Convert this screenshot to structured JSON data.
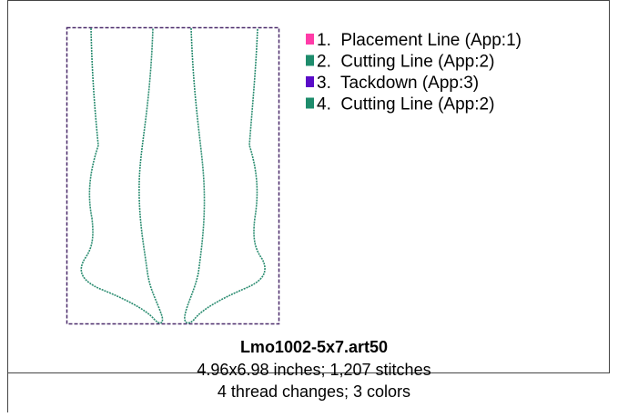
{
  "legend": [
    {
      "label": "1.  Placement Line (App:1)",
      "color": "#ff3ca8"
    },
    {
      "label": "2.  Cutting Line (App:2)",
      "color": "#1e8c6c"
    },
    {
      "label": "3.  Tackdown (App:3)",
      "color": "#5a0cc8"
    },
    {
      "label": "4.  Cutting Line (App:2)",
      "color": "#1e8c6c"
    }
  ],
  "file": {
    "name": "Lmo1002-5x7.art50",
    "lines": [
      "4.96x6.98 inches; 1,207 stitches",
      "4 thread changes; 3 colors"
    ]
  }
}
